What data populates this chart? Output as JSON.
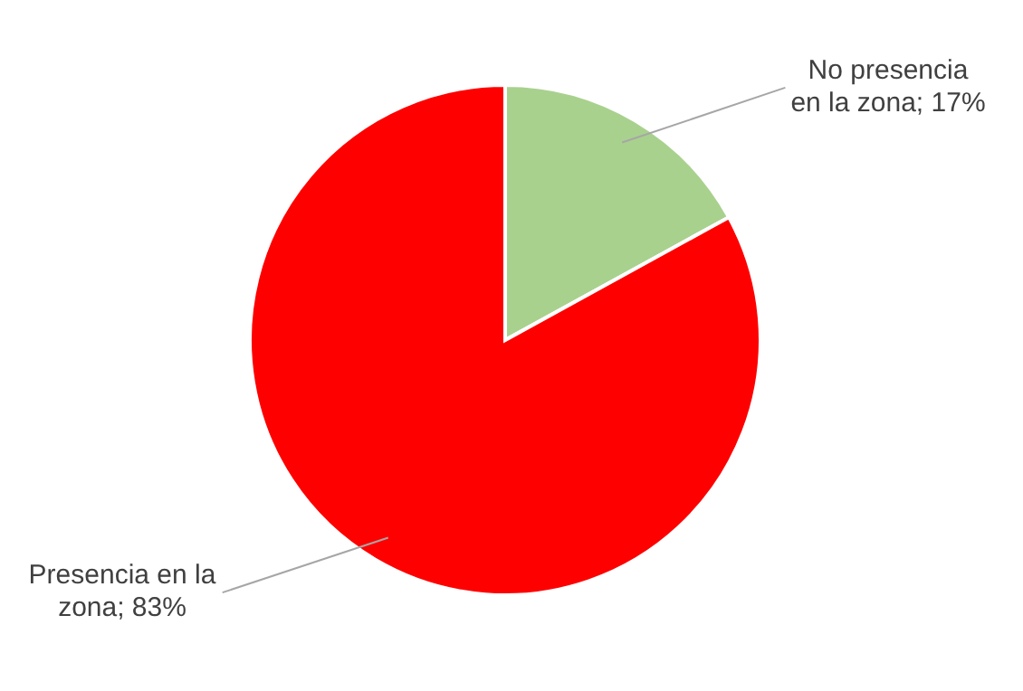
{
  "chart_data": {
    "type": "pie",
    "categories": [
      "No presencia en la zona",
      "Presencia en la zona"
    ],
    "values": [
      17,
      83
    ],
    "value_labels": [
      "17%",
      "83%"
    ],
    "colors": [
      "#a9d18e",
      "#ff0000"
    ],
    "legend": false
  }
}
